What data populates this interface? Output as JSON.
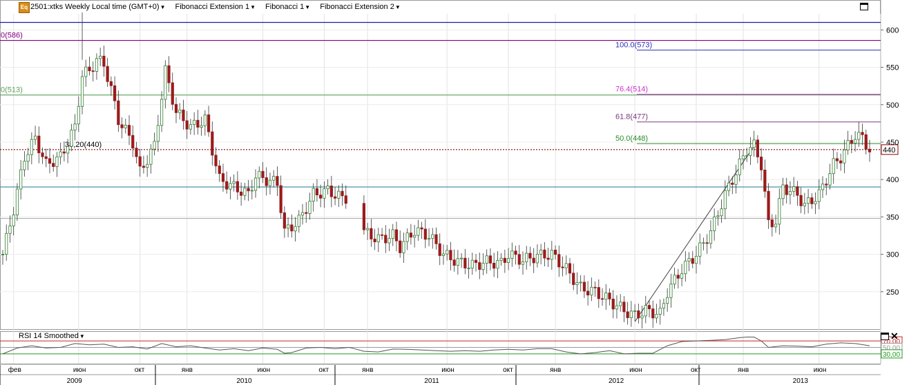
{
  "toolbar": {
    "symbol_icon": "Eq",
    "items": [
      {
        "label": "2501:xtks Weekly Local time (GMT+0)"
      },
      {
        "label": "Fibonacci Extension 1"
      },
      {
        "label": "Fibonacci 1"
      },
      {
        "label": "Fibonacci Extension 2"
      }
    ],
    "icons": [
      "maximize-icon",
      "close-icon"
    ]
  },
  "chart_data": {
    "type": "candlestick",
    "price_axis": {
      "min": 200,
      "max": 640,
      "ticks": [
        250,
        300,
        350,
        400,
        450,
        500,
        550,
        600
      ]
    },
    "current_price": 440,
    "horizontal_lines": [
      {
        "value": 610,
        "color": "#1a1aa8"
      },
      {
        "value": 586,
        "color": "#800080",
        "label": "0(586)"
      },
      {
        "value": 513,
        "color": "#5aa05a",
        "label": "0(513)"
      },
      {
        "value": 440,
        "color": "#8b0000",
        "style": "dotted",
        "label": "38,20(440)"
      },
      {
        "value": 390,
        "color": "#4a90a4"
      },
      {
        "value": 348,
        "color": "#b0b0b0"
      }
    ],
    "fib_extension_levels": [
      {
        "label": "100.0(573)",
        "value": 573,
        "color": "#2e2eb8"
      },
      {
        "label": "76.4(514)",
        "value": 514,
        "color": "#cc33cc"
      },
      {
        "label": "61.8(477)",
        "value": 477,
        "color": "#7a3a7a"
      },
      {
        "label": "50.0(448)",
        "value": 448,
        "color": "#2a8a2a"
      }
    ],
    "trend_line": {
      "from": {
        "week": 175,
        "price": 210
      },
      "to": {
        "week": 209,
        "price": 452
      }
    },
    "weeks_total": 240,
    "close_path": [
      [
        0,
        300
      ],
      [
        3,
        360
      ],
      [
        6,
        430
      ],
      [
        9,
        455
      ],
      [
        12,
        420
      ],
      [
        16,
        430
      ],
      [
        20,
        470
      ],
      [
        22,
        540
      ],
      [
        24,
        545
      ],
      [
        26,
        560
      ],
      [
        28,
        555
      ],
      [
        30,
        520
      ],
      [
        32,
        480
      ],
      [
        36,
        450
      ],
      [
        38,
        410
      ],
      [
        42,
        445
      ],
      [
        45,
        545
      ],
      [
        48,
        490
      ],
      [
        52,
        470
      ],
      [
        56,
        480
      ],
      [
        60,
        400
      ],
      [
        64,
        390
      ],
      [
        68,
        380
      ],
      [
        70,
        405
      ],
      [
        74,
        398
      ],
      [
        76,
        395
      ],
      [
        78,
        330
      ],
      [
        82,
        345
      ],
      [
        86,
        380
      ],
      [
        90,
        385
      ],
      [
        94,
        375
      ],
      [
        98,
        378
      ],
      [
        100,
        330
      ],
      [
        104,
        320
      ],
      [
        108,
        325
      ],
      [
        110,
        310
      ],
      [
        114,
        332
      ],
      [
        118,
        325
      ],
      [
        122,
        300
      ],
      [
        126,
        290
      ],
      [
        130,
        285
      ],
      [
        134,
        290
      ],
      [
        138,
        288
      ],
      [
        140,
        300
      ],
      [
        144,
        292
      ],
      [
        148,
        298
      ],
      [
        152,
        300
      ],
      [
        156,
        280
      ],
      [
        160,
        255
      ],
      [
        164,
        250
      ],
      [
        168,
        238
      ],
      [
        172,
        225
      ],
      [
        175,
        218
      ],
      [
        178,
        225
      ],
      [
        182,
        220
      ],
      [
        184,
        250
      ],
      [
        188,
        280
      ],
      [
        192,
        300
      ],
      [
        196,
        330
      ],
      [
        200,
        380
      ],
      [
        204,
        420
      ],
      [
        206,
        440
      ],
      [
        208,
        445
      ],
      [
        210,
        420
      ],
      [
        212,
        340
      ],
      [
        214,
        345
      ],
      [
        216,
        390
      ],
      [
        220,
        380
      ],
      [
        222,
        365
      ],
      [
        226,
        380
      ],
      [
        230,
        420
      ],
      [
        232,
        430
      ],
      [
        236,
        460
      ],
      [
        238,
        455
      ],
      [
        240,
        440
      ]
    ],
    "rsi": {
      "title": "RSI 14 Smoothed",
      "levels": [
        {
          "value": 70,
          "label": "70,00"
        },
        {
          "value": 50,
          "label": "50,00"
        },
        {
          "value": 30,
          "label": "30,00"
        }
      ],
      "path": [
        [
          0,
          30
        ],
        [
          4,
          48
        ],
        [
          8,
          55
        ],
        [
          12,
          48
        ],
        [
          16,
          50
        ],
        [
          20,
          62
        ],
        [
          24,
          58
        ],
        [
          28,
          60
        ],
        [
          32,
          50
        ],
        [
          36,
          52
        ],
        [
          40,
          45
        ],
        [
          44,
          62
        ],
        [
          48,
          52
        ],
        [
          52,
          55
        ],
        [
          56,
          48
        ],
        [
          60,
          42
        ],
        [
          64,
          46
        ],
        [
          68,
          40
        ],
        [
          72,
          48
        ],
        [
          76,
          44
        ],
        [
          78,
          32
        ],
        [
          80,
          34
        ],
        [
          84,
          48
        ],
        [
          88,
          50
        ],
        [
          92,
          46
        ],
        [
          96,
          50
        ],
        [
          100,
          38
        ],
        [
          104,
          36
        ],
        [
          108,
          45
        ],
        [
          112,
          44
        ],
        [
          116,
          42
        ],
        [
          120,
          40
        ],
        [
          124,
          38
        ],
        [
          128,
          40
        ],
        [
          132,
          38
        ],
        [
          136,
          42
        ],
        [
          140,
          44
        ],
        [
          144,
          42
        ],
        [
          148,
          46
        ],
        [
          152,
          46
        ],
        [
          156,
          36
        ],
        [
          160,
          30
        ],
        [
          164,
          34
        ],
        [
          168,
          40
        ],
        [
          172,
          30
        ],
        [
          176,
          32
        ],
        [
          180,
          32
        ],
        [
          184,
          55
        ],
        [
          188,
          68
        ],
        [
          192,
          70
        ],
        [
          196,
          72
        ],
        [
          200,
          74
        ],
        [
          204,
          80
        ],
        [
          206,
          82
        ],
        [
          208,
          82
        ],
        [
          210,
          70
        ],
        [
          212,
          50
        ],
        [
          216,
          55
        ],
        [
          220,
          54
        ],
        [
          224,
          52
        ],
        [
          228,
          60
        ],
        [
          232,
          64
        ],
        [
          236,
          62
        ],
        [
          240,
          55
        ]
      ]
    },
    "x_axis": {
      "months": [
        {
          "label": "фев",
          "week": 3
        },
        {
          "label": "июн",
          "week": 21
        },
        {
          "label": "окт",
          "week": 38
        },
        {
          "label": "янв",
          "week": 51
        },
        {
          "label": "июн",
          "week": 72
        },
        {
          "label": "окт",
          "week": 89
        },
        {
          "label": "янв",
          "week": 101
        },
        {
          "label": "июн",
          "week": 123
        },
        {
          "label": "окт",
          "week": 140
        },
        {
          "label": "янв",
          "week": 153
        },
        {
          "label": "июн",
          "week": 175
        },
        {
          "label": "окт",
          "week": 192
        },
        {
          "label": "янв",
          "week": 205
        },
        {
          "label": "июн",
          "week": 226
        },
        {
          "label": "окт",
          "week": 243
        }
      ],
      "years": [
        {
          "label": "2009",
          "week": 20
        },
        {
          "label": "2010",
          "week": 67
        },
        {
          "label": "2011",
          "week": 119
        },
        {
          "label": "2012",
          "week": 170
        },
        {
          "label": "2013",
          "week": 221
        }
      ]
    }
  }
}
